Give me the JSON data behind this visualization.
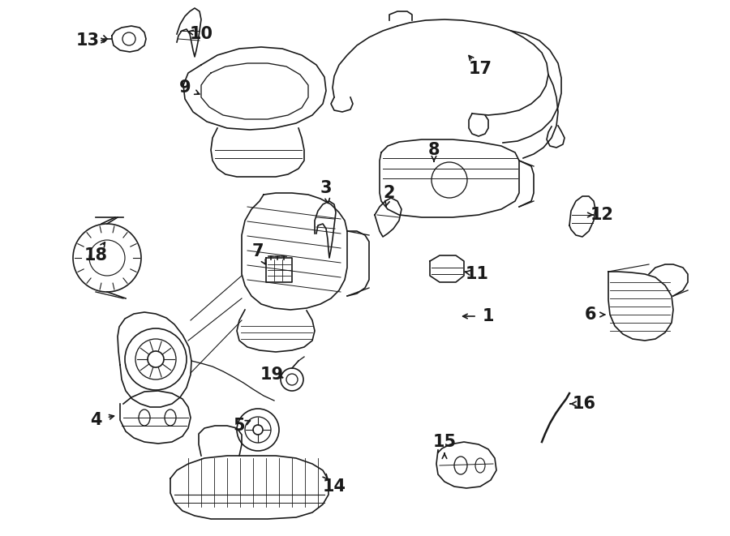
{
  "bg_color": "#ffffff",
  "line_color": "#1a1a1a",
  "fig_width": 9.0,
  "fig_height": 6.61,
  "dpi": 100,
  "font_size": 15,
  "lw": 1.2
}
